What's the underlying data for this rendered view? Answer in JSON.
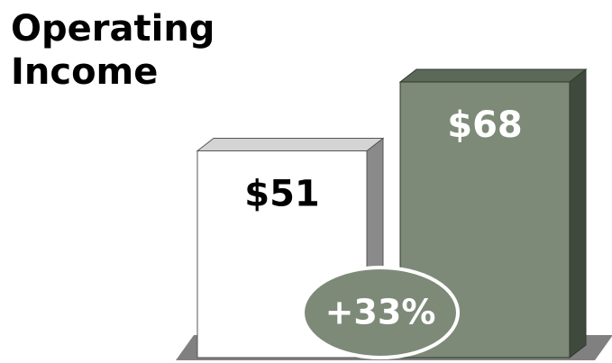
{
  "chart_data": {
    "type": "bar",
    "title": "Operating Income",
    "categories": [
      null,
      null
    ],
    "values": [
      51,
      68
    ],
    "value_labels": [
      "$51",
      "$68"
    ],
    "colors": [
      "#ffffff",
      "#7d8a78"
    ],
    "annotation": "+33%"
  }
}
